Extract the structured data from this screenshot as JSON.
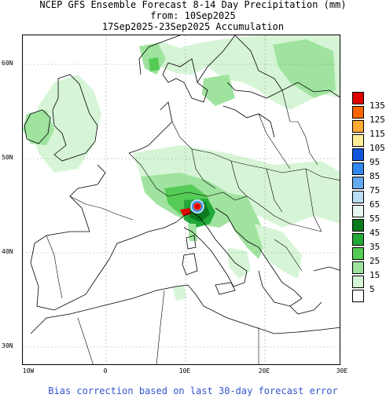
{
  "header": {
    "line1": "NCEP GFS Ensemble Forecast 8-14 Day Precipitation (mm)",
    "line2": "from: 10Sep2025",
    "line3": "17Sep2025-23Sep2025 Accumulation"
  },
  "map": {
    "lat_labels": [
      "60N",
      "50N",
      "40N",
      "30N"
    ],
    "lon_labels": [
      "10W",
      "0",
      "10E",
      "20E",
      "30E"
    ]
  },
  "legend": {
    "items": [
      {
        "label": "135",
        "color": "#e00000"
      },
      {
        "label": "125",
        "color": "#ff6600"
      },
      {
        "label": "115",
        "color": "#ffaa33"
      },
      {
        "label": "105",
        "color": "#ffee99"
      },
      {
        "label": "95",
        "color": "#1155dd"
      },
      {
        "label": "85",
        "color": "#3388ee"
      },
      {
        "label": "75",
        "color": "#66aaee"
      },
      {
        "label": "65",
        "color": "#bbddf7"
      },
      {
        "label": "55",
        "color": "#e6f7f2"
      },
      {
        "label": "45",
        "color": "#0b7a1f"
      },
      {
        "label": "35",
        "color": "#22a838"
      },
      {
        "label": "25",
        "color": "#55cc55"
      },
      {
        "label": "15",
        "color": "#9fe39f"
      },
      {
        "label": "5",
        "color": "#d6f5d6"
      },
      {
        "label": "",
        "color": "#ffffff"
      }
    ]
  },
  "footer": {
    "text": "Bias correction based on last 30-day forecast error"
  }
}
